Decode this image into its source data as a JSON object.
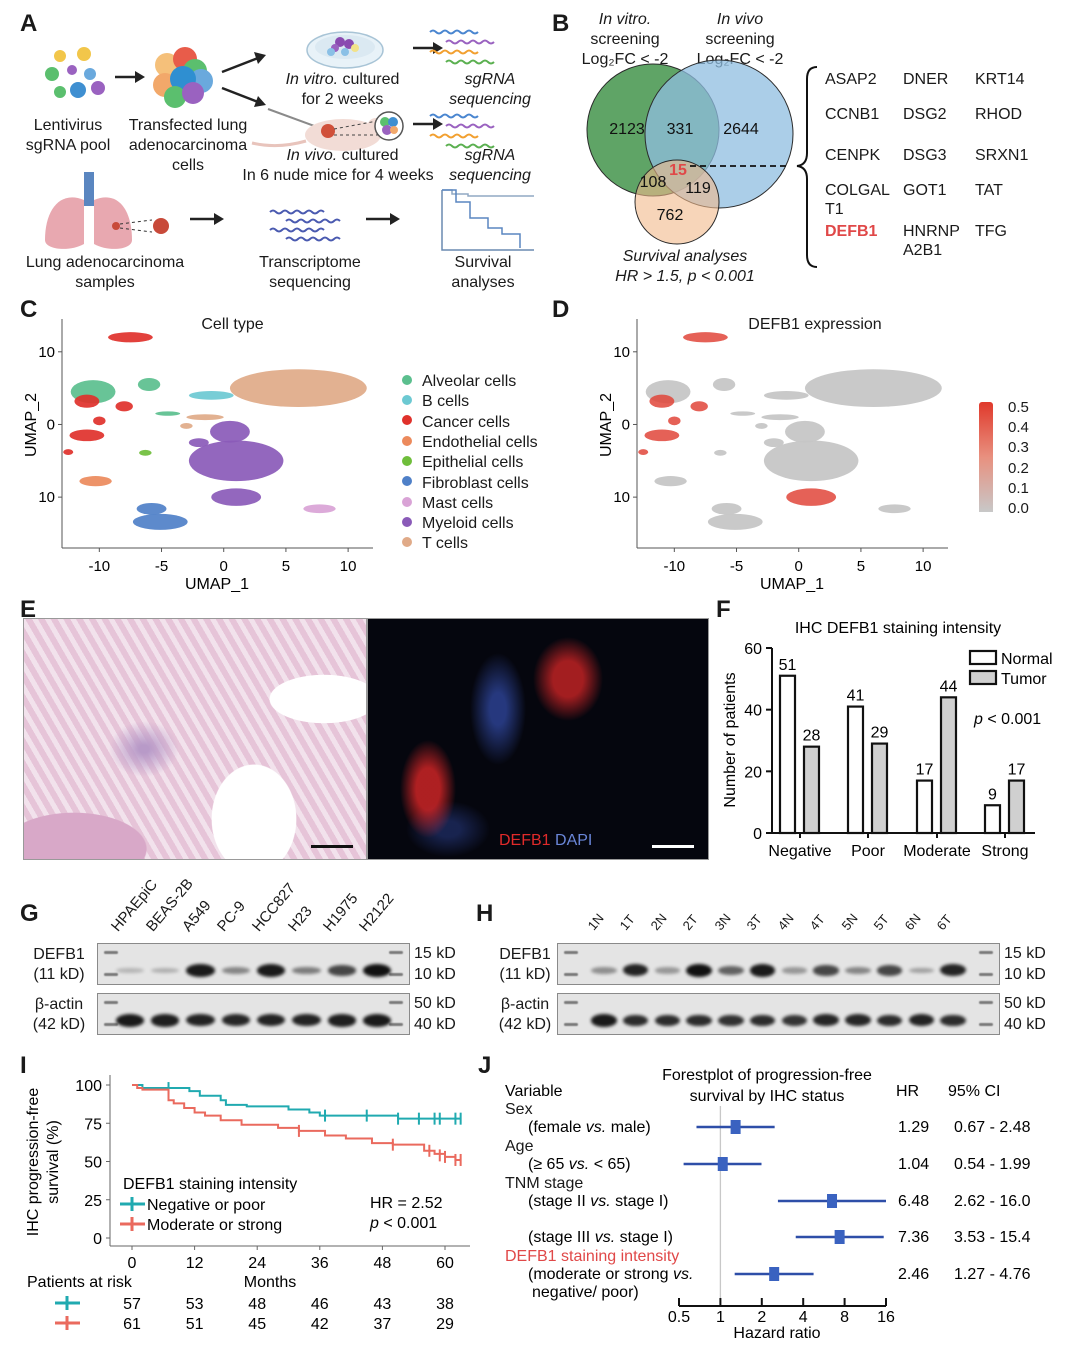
{
  "panels": {
    "A": {
      "label": "A",
      "steps": {
        "lentivirus": [
          "Lentivirus",
          "sgRNA pool"
        ],
        "transfected": [
          "Transfected lung",
          "adenocarcinoma",
          "cells"
        ],
        "in_vitro": {
          "italic": "In vitro.",
          "rest": " cultured",
          "line2": "for 2 weeks"
        },
        "in_vivo": {
          "italic": "In vivo.",
          "rest": " cultured",
          "line2": "In 6 nude mice for 4 weeks"
        },
        "sgrna_seq_1": [
          "sgRNA",
          "sequencing"
        ],
        "sgrna_seq_2": [
          "sgRNA",
          "sequencing"
        ],
        "lung_samples": [
          "Lung adenocarcinoma",
          "samples"
        ],
        "transcriptome": [
          "Transcriptome",
          "sequencing"
        ],
        "survival": [
          "Survival",
          "analyses"
        ]
      }
    },
    "B": {
      "label": "B",
      "set_in_vitro": {
        "italic": "In vitro.",
        "line2": "screening",
        "line3": "Log₂FC < -2"
      },
      "set_in_vivo": {
        "italic": "In vivo",
        "line2": "screening",
        "line3": "Log₂FC < -2"
      },
      "set_survival": {
        "line1": "Survival analyses",
        "line2": "HR > 1.5, p < 0.001"
      },
      "counts": {
        "vitro_only": "2123",
        "vitro_vivo": "331",
        "vivo_only": "2644",
        "all_three": "15",
        "vitro_surv": "108",
        "vivo_surv": "119",
        "surv_only": "762"
      },
      "colors": {
        "in_vitro": "#4e9a55",
        "in_vivo": "#8fbde0",
        "survival": "#f2b98a",
        "highlight": "#e04848"
      },
      "genes": [
        [
          "ASAP2",
          "DNER",
          "KRT14"
        ],
        [
          "CCNB1",
          "DSG2",
          "RHOD"
        ],
        [
          "CENPK",
          "DSG3",
          "SRXN1"
        ],
        [
          "COLGAL T1",
          "GOT1",
          "TAT"
        ],
        [
          "DEFB1",
          "HNRNP A2B1",
          "TFG"
        ]
      ],
      "highlight_gene": "DEFB1"
    },
    "C": {
      "label": "C",
      "title": "Cell type",
      "xlabel": "UMAP_1",
      "ylabel": "UMAP_2",
      "xticks": [
        "-10",
        "-5",
        "0",
        "5",
        "10"
      ],
      "yticks": [
        "10",
        "0",
        "10"
      ],
      "legend": [
        {
          "name": "Alveolar cells",
          "color": "#5bbf8e"
        },
        {
          "name": "B cells",
          "color": "#6cc9d2"
        },
        {
          "name": "Cancer cells",
          "color": "#e0312b"
        },
        {
          "name": "Endothelial cells",
          "color": "#ec8a5c"
        },
        {
          "name": "Epithelial cells",
          "color": "#6fbe3b"
        },
        {
          "name": "Fibroblast cells",
          "color": "#4f80c8"
        },
        {
          "name": "Mast cells",
          "color": "#d9a3d6"
        },
        {
          "name": "Myeloid cells",
          "color": "#8a5ab8"
        },
        {
          "name": "T cells",
          "color": "#e0aa88"
        }
      ]
    },
    "D": {
      "label": "D",
      "title": "DEFB1 expression",
      "xlabel": "UMAP_1",
      "ylabel": "UMAP_2",
      "xticks": [
        "-10",
        "-5",
        "0",
        "5",
        "10"
      ],
      "yticks": [
        "10",
        "0",
        "10"
      ],
      "colorbar": {
        "ticks": [
          "0.5",
          "0.4",
          "0.3",
          "0.2",
          "0.1",
          "0.0"
        ],
        "low": "#c8c8c8",
        "high": "#e0392b"
      }
    },
    "E": {
      "label": "E",
      "legend_red": "DEFB1",
      "legend_blue": "DAPI",
      "colors": {
        "red": "#e02a2a",
        "blue": "#4b6fc9"
      }
    },
    "G": {
      "label": "G",
      "lanes": [
        "HPAEpiC",
        "BEAS-2B",
        "A549",
        "PC-9",
        "HCC827",
        "H23",
        "H1975",
        "H2122"
      ],
      "rows": [
        {
          "name": "DEFB1",
          "size": "(11 kD)",
          "markers": [
            "15 kD",
            "10 kD"
          ],
          "intensity": [
            0.08,
            0.12,
            0.95,
            0.35,
            0.95,
            0.4,
            0.7,
            1.0
          ]
        },
        {
          "name": "β-actin",
          "size": "(42 kD)",
          "markers": [
            "50 kD",
            "40 kD"
          ],
          "intensity": [
            0.95,
            0.92,
            0.9,
            0.88,
            0.9,
            0.9,
            0.92,
            0.95
          ]
        }
      ]
    },
    "H": {
      "label": "H",
      "lanes": [
        "1N",
        "1T",
        "2N",
        "2T",
        "3N",
        "3T",
        "4N",
        "4T",
        "5N",
        "5T",
        "6N",
        "6T"
      ],
      "rows": [
        {
          "name": "DEFB1",
          "size": "(11 kD)",
          "markers": [
            "15 kD",
            "10 kD"
          ],
          "intensity": [
            0.3,
            0.9,
            0.25,
            1.0,
            0.55,
            0.95,
            0.25,
            0.7,
            0.35,
            0.7,
            0.2,
            0.9
          ]
        },
        {
          "name": "β-actin",
          "size": "(42 kD)",
          "markers": [
            "50 kD",
            "40 kD"
          ],
          "intensity": [
            0.95,
            0.85,
            0.85,
            0.85,
            0.82,
            0.85,
            0.8,
            0.88,
            0.88,
            0.85,
            0.9,
            0.85
          ]
        }
      ]
    },
    "I": {
      "label": "I",
      "legend_title": "DEFB1 staining intensity",
      "hr_text": "HR = 2.52",
      "p_text": "p < 0.001",
      "risk_title": "Patients at risk",
      "risk_negative": [
        "57",
        "53",
        "48",
        "46",
        "43",
        "38"
      ],
      "risk_moderate": [
        "61",
        "51",
        "45",
        "42",
        "37",
        "29"
      ]
    },
    "J": {
      "label": "J",
      "title_line1": "Forestplot of progression-free",
      "title_line2": "survival by IHC status",
      "col_variable": "Variable",
      "col_hr": "HR",
      "col_ci": "95% CI",
      "groups": [
        {
          "label": "Sex",
          "sub": "(female vs. male)",
          "color": "#1a1a1a"
        },
        {
          "label": "Age",
          "sub": "(≥ 65 vs. < 65)",
          "color": "#1a1a1a"
        },
        {
          "label": "TNM stage",
          "sub": "(stage II vs. stage I)",
          "color": "#1a1a1a"
        },
        {
          "label": "",
          "sub": "(stage III vs. stage I)",
          "color": "#1a1a1a"
        },
        {
          "label": "DEFB1 staining intensity",
          "sub": "(moderate or strong vs.",
          "sub2": "negative/ poor)",
          "color": "#e04848"
        }
      ],
      "hr_values": [
        "1.29",
        "1.04",
        "6.48",
        "7.36",
        "2.46"
      ],
      "ci_values": [
        "0.67 - 2.48",
        "0.54 - 1.99",
        "2.62 - 16.0",
        "3.53 - 15.4",
        "1.27 -  4.76"
      ],
      "xlabel": "Hazard ratio",
      "xticks": [
        "0.5",
        "1",
        "2",
        "4",
        "8",
        "16"
      ]
    }
  },
  "chart_data": [
    {
      "type": "bar",
      "panel": "F",
      "title": "IHC DEFB1 staining intensity",
      "xlabel": "",
      "ylabel": "Number of patients",
      "categories": [
        "Negative",
        "Poor",
        "Moderate",
        "Strong"
      ],
      "series": [
        {
          "name": "Normal",
          "values": [
            51,
            41,
            17,
            9
          ],
          "color": "#ffffff"
        },
        {
          "name": "Tumor",
          "values": [
            28,
            29,
            44,
            17
          ],
          "color": "#d0d0d0"
        }
      ],
      "ylim": [
        0,
        60
      ],
      "yticks": [
        "0",
        "20",
        "40",
        "60"
      ],
      "annotation": "p < 0.001",
      "legend_position": "top-right"
    },
    {
      "type": "line",
      "panel": "I",
      "title": "",
      "xlabel": "Months",
      "ylabel": "IHC progression-free survival (%)",
      "xlim": [
        0,
        63
      ],
      "ylim": [
        0,
        100
      ],
      "xticks": [
        "0",
        "12",
        "24",
        "36",
        "48",
        "60"
      ],
      "yticks": [
        "0",
        "25",
        "50",
        "75",
        "100"
      ],
      "series": [
        {
          "name": "Negative or poor",
          "color": "#20aab0",
          "x": [
            0,
            2,
            7,
            11,
            13,
            17,
            18,
            22,
            30,
            34,
            36,
            51,
            63
          ],
          "y": [
            100,
            98,
            98,
            96,
            93,
            90,
            87,
            86,
            84,
            82,
            80,
            78,
            78
          ],
          "censor_x": [
            7,
            37,
            45,
            51,
            55,
            58,
            59,
            62,
            63
          ],
          "censor_y": [
            98,
            80,
            80,
            78,
            78,
            78,
            78,
            78,
            78
          ]
        },
        {
          "name": "Moderate or strong",
          "color": "#ea6a5e",
          "x": [
            0,
            1,
            2,
            7,
            8,
            10,
            12,
            14,
            17,
            21,
            28,
            32,
            37,
            41,
            46,
            50,
            56,
            58,
            60,
            62,
            63
          ],
          "y": [
            100,
            98,
            97,
            90,
            88,
            85,
            82,
            80,
            77,
            74,
            72,
            70,
            67,
            65,
            62,
            61,
            57,
            55,
            53,
            51,
            51
          ],
          "censor_x": [
            32,
            50,
            57,
            59,
            60,
            62,
            63
          ],
          "censor_y": [
            70,
            61,
            57,
            54,
            53,
            51,
            51
          ]
        }
      ],
      "legend_position": "bottom-left"
    },
    {
      "type": "scatter",
      "panel": "J",
      "title": "Forestplot of progression-free survival by IHC status",
      "xlabel": "Hazard ratio",
      "xscale": "log2",
      "xlim": [
        0.5,
        16
      ],
      "reference_line": 1,
      "categories": [
        "female vs. male",
        "≥ 65 vs. < 65",
        "stage II vs. stage I",
        "stage III vs. stage I",
        "moderate or strong vs. negative/ poor"
      ],
      "hr": [
        1.29,
        1.04,
        6.48,
        7.36,
        2.46
      ],
      "ci_low": [
        0.67,
        0.54,
        2.62,
        3.53,
        1.27
      ],
      "ci_high": [
        2.48,
        1.99,
        16.0,
        15.4,
        4.76
      ],
      "color": "#2e4ea8"
    }
  ]
}
